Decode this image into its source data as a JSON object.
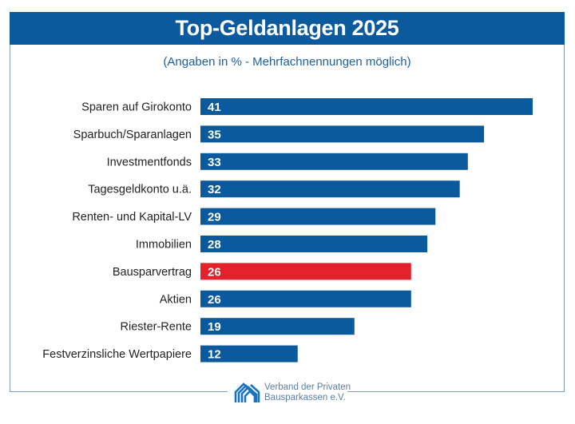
{
  "chart_data": {
    "type": "bar",
    "orientation": "horizontal",
    "title": "Top-Geldanlagen 2025",
    "subtitle": "(Angaben in % - Mehrfachnennungen möglich)",
    "xlabel": "",
    "ylabel": "",
    "xlim": [
      0,
      41
    ],
    "grid": false,
    "legend": null,
    "categories": [
      "Sparen auf Girokonto",
      "Sparbuch/Sparanlagen",
      "Investmentfonds",
      "Tagesgeldkonto u.ä.",
      "Renten- und Kapital-LV",
      "Immobilien",
      "Bausparvertrag",
      "Aktien",
      "Riester-Rente",
      "Festverzinsliche Wertpapiere"
    ],
    "values": [
      41,
      35,
      33,
      32,
      29,
      28,
      26,
      26,
      19,
      12
    ],
    "highlight_index": 6,
    "colors": {
      "default": "#0c5a9e",
      "highlight": "#e3222b"
    }
  },
  "footer": {
    "organization_line1": "Verband der Privaten",
    "organization_line2": "Bausparkassen e.V."
  }
}
